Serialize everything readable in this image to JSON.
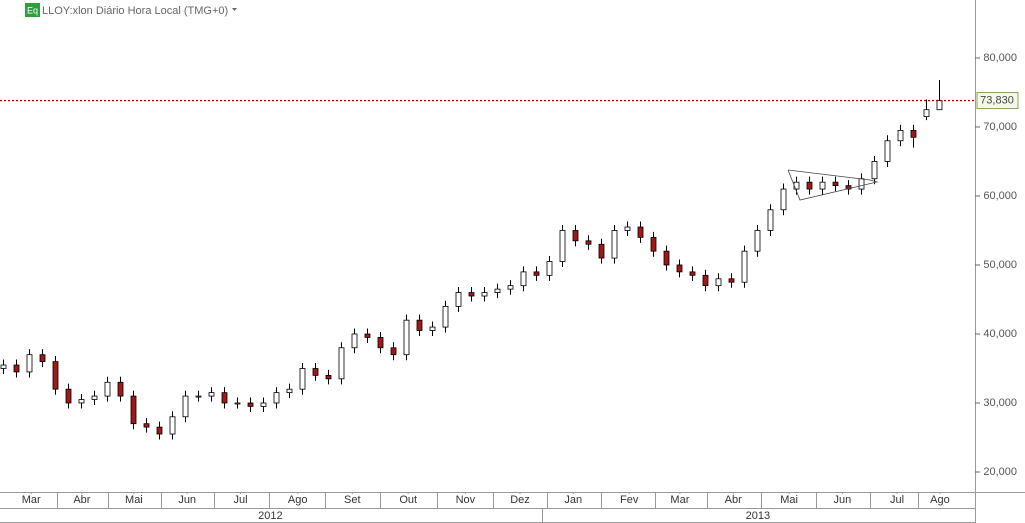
{
  "chart_data": {
    "type": "candlestick",
    "title": "LLOY:xlon Diário Hora Local (TMG+0)",
    "badge": "Eq",
    "x": [
      0,
      1,
      2,
      3,
      4,
      5,
      6,
      7,
      8,
      9,
      10,
      11,
      12,
      13,
      14,
      15,
      16,
      17,
      18,
      19,
      20,
      21,
      22,
      23,
      24,
      25,
      26,
      27,
      28,
      29,
      30,
      31,
      32,
      33,
      34,
      35,
      36,
      37,
      38,
      39,
      40,
      41,
      42,
      43,
      44,
      45,
      46,
      47,
      48,
      49,
      50,
      51,
      52,
      53,
      54,
      55,
      56,
      57,
      58,
      59,
      60,
      61,
      62,
      63,
      64,
      65,
      66,
      67,
      68,
      69,
      70,
      71,
      72
    ],
    "open": [
      35,
      35.5,
      34.5,
      37,
      36,
      32,
      30,
      30.5,
      31,
      33,
      31,
      27,
      26.5,
      25.5,
      28,
      31,
      31,
      31.5,
      30,
      30,
      29.5,
      30,
      31.5,
      32,
      35,
      34,
      33.5,
      38,
      40,
      39.5,
      38,
      37,
      42,
      40.5,
      41,
      44,
      46,
      45.5,
      46,
      46.5,
      47,
      49,
      48.5,
      50.5,
      55,
      53.5,
      53,
      51,
      55,
      55.5,
      54,
      52,
      50,
      49,
      48.5,
      47,
      48,
      47.5,
      52,
      55,
      58,
      61,
      62,
      61,
      62,
      61.5,
      61,
      62.5,
      65,
      68,
      69.5,
      71.5,
      72.5
    ],
    "high": [
      36.3,
      36.3,
      37.8,
      37.8,
      36.8,
      32.8,
      31.3,
      31.8,
      33.8,
      33.8,
      31.8,
      27.8,
      27.3,
      28.8,
      31.8,
      31.8,
      32.3,
      32.3,
      30.8,
      30.8,
      30.8,
      32.3,
      32.8,
      35.8,
      35.8,
      34.8,
      38.8,
      40.8,
      40.8,
      40.3,
      38.8,
      42.8,
      42.8,
      41.8,
      44.8,
      46.8,
      46.8,
      46.8,
      47.3,
      47.8,
      49.8,
      49.8,
      51.3,
      55.8,
      55.8,
      54.3,
      53.8,
      55.8,
      56.3,
      56.3,
      54.8,
      52.8,
      50.8,
      49.8,
      49.3,
      48.8,
      48.8,
      52.8,
      55.8,
      58.8,
      61.8,
      62.8,
      62.8,
      62.8,
      62.8,
      62.3,
      63.3,
      65.8,
      68.8,
      70.3,
      70.3,
      74,
      76.8
    ],
    "low": [
      34.2,
      33.7,
      33.7,
      35.2,
      31.2,
      29.2,
      29.2,
      29.7,
      30.2,
      30.2,
      26.2,
      25.7,
      24.7,
      24.7,
      27.2,
      30.2,
      30.2,
      29.2,
      29.2,
      28.7,
      28.7,
      29.2,
      30.7,
      31.2,
      33.2,
      32.7,
      32.7,
      37.2,
      38.7,
      37.2,
      36.2,
      36.2,
      39.7,
      39.7,
      40.2,
      43.2,
      44.7,
      44.7,
      45.2,
      45.7,
      46.2,
      47.7,
      47.7,
      49.7,
      52.7,
      52.2,
      50.2,
      50.2,
      54.2,
      53.2,
      51.2,
      49.2,
      48.2,
      47.7,
      46.2,
      46.2,
      46.7,
      46.7,
      51.2,
      54.2,
      57.2,
      60.2,
      60.2,
      60.2,
      60.7,
      60.2,
      60.2,
      61.7,
      64.2,
      67.2,
      67,
      71,
      73
    ],
    "close": [
      35.5,
      34.5,
      37,
      36,
      32,
      30,
      30.5,
      31,
      33,
      31,
      27,
      26.5,
      25.5,
      28,
      31,
      31,
      31.5,
      30,
      30,
      29.5,
      30,
      31.5,
      32,
      35,
      34,
      33.5,
      38,
      40,
      39.5,
      38,
      37,
      42,
      40.5,
      41,
      44,
      46,
      45.5,
      46,
      46.5,
      47,
      49,
      48.5,
      50.5,
      55,
      53.5,
      53,
      51,
      55,
      55.5,
      54,
      52,
      50,
      49,
      48.5,
      47,
      48,
      47.5,
      52,
      55,
      58,
      61,
      62,
      61,
      62,
      61.5,
      61,
      62.5,
      65,
      68,
      69.5,
      68.5,
      72.5,
      73.83
    ],
    "up_color": "#ffffff",
    "down_color": "#a01818",
    "outline_color": "#000000",
    "last_price": {
      "value": 73.83,
      "label": "73,830"
    },
    "last_price_color": "#c00000",
    "xlim": [
      -0.2,
      74.8
    ],
    "xticks": [
      {
        "value": 2.2,
        "label": "Mar"
      },
      {
        "value": 6.1,
        "label": "Abr"
      },
      {
        "value": 10.1,
        "label": "Mai"
      },
      {
        "value": 14.2,
        "label": "Jun"
      },
      {
        "value": 18.3,
        "label": "Jul"
      },
      {
        "value": 22.7,
        "label": "Ago"
      },
      {
        "value": 26.9,
        "label": "Set"
      },
      {
        "value": 31.2,
        "label": "Out"
      },
      {
        "value": 35.6,
        "label": "Nov"
      },
      {
        "value": 39.8,
        "label": "Dez"
      },
      {
        "value": 43.9,
        "label": "Jan"
      },
      {
        "value": 48.2,
        "label": "Fev"
      },
      {
        "value": 52.1,
        "label": "Mar"
      },
      {
        "value": 56.2,
        "label": "Abr"
      },
      {
        "value": 60.5,
        "label": "Mai"
      },
      {
        "value": 64.6,
        "label": "Jun"
      },
      {
        "value": 68.8,
        "label": "Jul"
      },
      {
        "value": 72.1,
        "label": "Ago"
      }
    ],
    "year_ticks": [
      {
        "value": 20.6,
        "label": "2012"
      },
      {
        "value": 58.1,
        "label": "2013"
      }
    ],
    "ylim": [
      17.1,
      88.4
    ],
    "yticks": [
      {
        "value": 20,
        "label": "20,000"
      },
      {
        "value": 30,
        "label": "30,000"
      },
      {
        "value": 40,
        "label": "40,000"
      },
      {
        "value": 50,
        "label": "50,000"
      },
      {
        "value": 60,
        "label": "60,000"
      },
      {
        "value": 70,
        "label": "70,000"
      },
      {
        "value": 80,
        "label": "80,000"
      }
    ]
  }
}
